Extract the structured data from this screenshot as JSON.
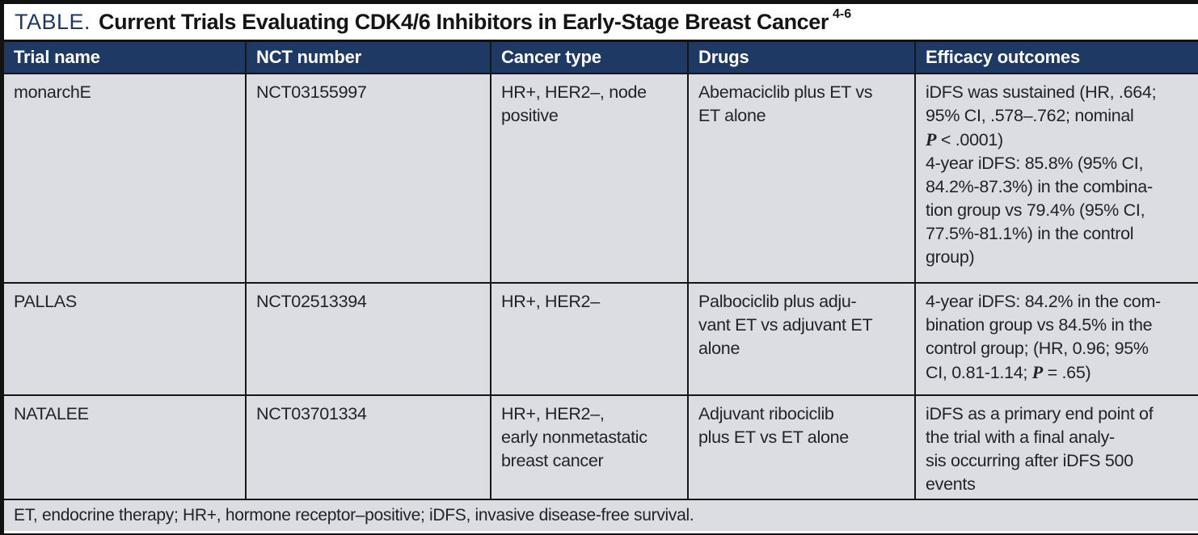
{
  "title": {
    "label": "TABLE.",
    "text": "Current Trials Evaluating CDK4/6 Inhibitors in Early-Stage Breast Cancer",
    "superscript": "4-6"
  },
  "colors": {
    "header_bg": "#1e3a64",
    "row_bg": "#dcdde3",
    "title_accent": "#1e3a64",
    "grid_line": "#161616"
  },
  "columns": {
    "trial_name": "Trial name",
    "nct_number": "NCT number",
    "cancer_type": "Cancer type",
    "drugs": "Drugs",
    "efficacy_outcomes": "Efficacy outcomes"
  },
  "rows": [
    {
      "trial_name": "monarchE",
      "nct_number": "NCT03155997",
      "cancer_type": [
        "HR+, HER2–, node",
        "positive"
      ],
      "drugs": [
        "Abemaciclib plus ET vs",
        "ET alone"
      ],
      "efficacy": {
        "l1": "iDFS was sustained (HR, .664;",
        "l2": "95% CI, .578–.762; nominal",
        "p_label": "P",
        "p_rest": " < .0001)",
        "l4": "4-year iDFS: 85.8% (95% CI,",
        "l5": "84.2%-87.3%) in the combina-",
        "l6": "tion group vs 79.4% (95% CI,",
        "l7": "77.5%-81.1%) in the control",
        "l8": "group)"
      }
    },
    {
      "trial_name": "PALLAS",
      "nct_number": "NCT02513394",
      "cancer_type": [
        "HR+, HER2–"
      ],
      "drugs": [
        "Palbociclib plus adju-",
        "vant ET vs adjuvant ET",
        "alone"
      ],
      "efficacy": {
        "l1": "4-year iDFS: 84.2% in the com-",
        "l2": "bination group vs 84.5% in the",
        "l3": "control group; (HR, 0.96; 95%",
        "p_pre": "CI, 0.81-1.14; ",
        "p_label": "P",
        "p_rest": " = .65)"
      }
    },
    {
      "trial_name": "NATALEE",
      "nct_number": "NCT03701334",
      "cancer_type": [
        "HR+, HER2–,",
        "early nonmetastatic",
        "breast cancer"
      ],
      "drugs": [
        "Adjuvant ribociclib",
        "plus ET vs ET alone"
      ],
      "efficacy": {
        "l1": "iDFS as a primary end point of",
        "l2": "the trial with a final analy-",
        "l3": "sis occurring after iDFS 500",
        "l4": "events"
      }
    }
  ],
  "footnote": "ET, endocrine therapy; HR+, hormone receptor–positive; iDFS, invasive disease-free survival."
}
